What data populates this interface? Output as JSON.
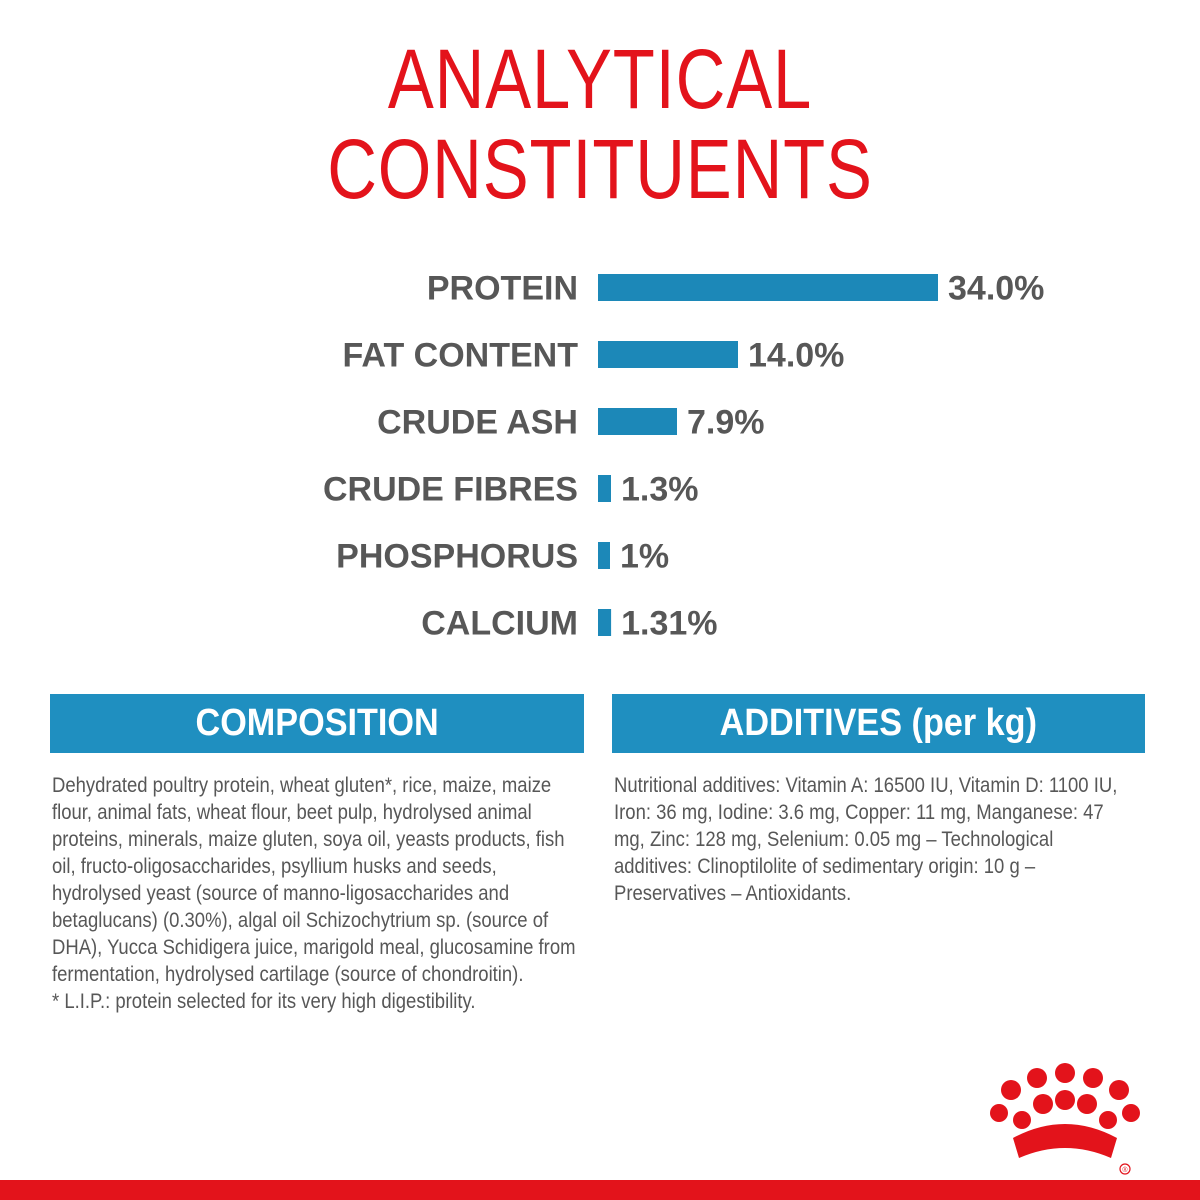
{
  "title": {
    "line1": "ANALYTICAL",
    "line2": "CONSTITUENTS"
  },
  "colors": {
    "title": "#e3131b",
    "bar": "#1c88b8",
    "band": "#1f8fc0",
    "text": "#575757"
  },
  "chart_data": {
    "type": "bar",
    "orientation": "horizontal",
    "categories": [
      "PROTEIN",
      "FAT CONTENT",
      "CRUDE ASH",
      "CRUDE FIBRES",
      "PHOSPHORUS",
      "CALCIUM"
    ],
    "values": [
      34.0,
      14.0,
      7.9,
      1.3,
      1,
      1.31
    ],
    "value_labels": [
      "34.0%",
      "14.0%",
      "7.9%",
      "1.3%",
      "1%",
      "1.31%"
    ],
    "xlim": [
      0,
      34
    ],
    "grid": false,
    "legend": "none"
  },
  "composition": {
    "header": "COMPOSITION",
    "text": "Dehydrated poultry protein, wheat gluten*, rice, maize, maize flour, animal fats, wheat flour, beet pulp, hydrolysed animal proteins, minerals, maize gluten, soya oil, yeasts products, fish oil, fructo-oligosaccharides, psyllium husks and seeds, hydrolysed yeast (source of manno-ligosaccharides and betaglucans) (0.30%), algal oil Schizochytrium sp. (source of DHA), Yucca Schidigera juice, marigold meal, glucosamine from fermentation, hydrolysed cartilage (source of chondroitin).",
    "footnote": "* L.I.P.: protein selected for its very high digestibility."
  },
  "additives": {
    "header": "ADDITIVES (per kg)",
    "text": "Nutritional additives: Vitamin A: 16500 IU, Vitamin D: 1100 IU, Iron: 36 mg, Iodine: 3.6 mg, Copper: 11 mg, Manganese: 47 mg, Zinc: 128 mg, Selenium: 0.05 mg – Technological additives: Clinoptilolite of sedimentary origin: 10 g – Preservatives – Antioxidants."
  },
  "logo": {
    "icon": "crown-icon",
    "mark": "®"
  }
}
